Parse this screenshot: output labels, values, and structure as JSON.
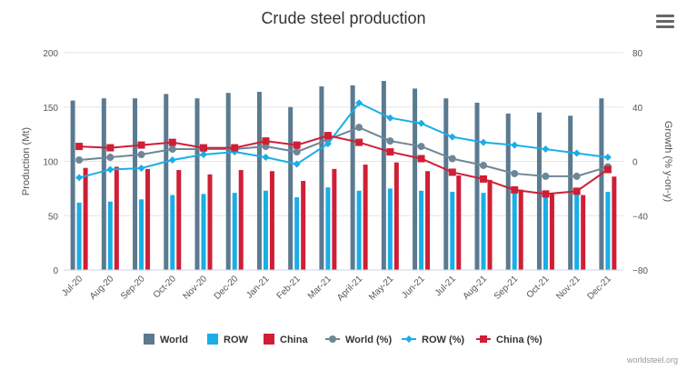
{
  "title": "Crude steel production",
  "credit": "worldsteel.org",
  "menu_icon": "hamburger-menu-icon",
  "colors": {
    "world": "#5b7a90",
    "row": "#1aaee6",
    "china": "#cf1f36",
    "world_line": "#6d8797",
    "grid": "#e6e6e6",
    "axis_text": "#555555"
  },
  "chart_data": {
    "type": "bar+line",
    "title": "Crude steel production",
    "categories": [
      "Jul-20",
      "Aug-20",
      "Sep-20",
      "Oct-20",
      "Nov-20",
      "Dec-20",
      "Jan-21",
      "Feb-21",
      "Mar-21",
      "April-21",
      "May-21",
      "Jun-21",
      "Jul-21",
      "Aug-21",
      "Sep-21",
      "Oct-21",
      "Nov-21",
      "Dec-21"
    ],
    "ylabel_left": "Production (Mt)",
    "ylabel_right": "Growth (% y-on-y)",
    "ylim_left": [
      0,
      200
    ],
    "ylim_right": [
      -80,
      80
    ],
    "yticks_left": [
      "0",
      "50",
      "100",
      "150",
      "200"
    ],
    "yticks_right": [
      "−80",
      "−40",
      "0",
      "40",
      "80"
    ],
    "grid": true,
    "legend_position": "bottom",
    "bar_series": [
      {
        "name": "World",
        "values": [
          156,
          158,
          158,
          162,
          158,
          163,
          164,
          150,
          169,
          170,
          174,
          167,
          158,
          154,
          144,
          145,
          142,
          158
        ]
      },
      {
        "name": "ROW",
        "values": [
          62,
          63,
          65,
          69,
          70,
          71,
          73,
          67,
          76,
          73,
          75,
          73,
          72,
          71,
          71,
          69,
          72,
          72
        ]
      },
      {
        "name": "China",
        "values": [
          94,
          95,
          93,
          92,
          88,
          92,
          91,
          82,
          93,
          97,
          99,
          91,
          87,
          83,
          74,
          71,
          69,
          86
        ]
      }
    ],
    "line_series": [
      {
        "name": "World (%)",
        "values": [
          1,
          3,
          5,
          9,
          9,
          9,
          11,
          7,
          16,
          25,
          15,
          11,
          2,
          -3,
          -9,
          -11,
          -11,
          -4
        ]
      },
      {
        "name": "ROW (%)",
        "values": [
          -12,
          -6,
          -5,
          1,
          5,
          7,
          3,
          -2,
          13,
          43,
          32,
          28,
          18,
          14,
          12,
          9,
          6,
          3
        ]
      },
      {
        "name": "China (%)",
        "values": [
          11,
          10,
          12,
          14,
          10,
          10,
          15,
          12,
          19,
          14,
          7,
          2,
          -8,
          -13,
          -21,
          -24,
          -22,
          -6
        ]
      }
    ]
  },
  "legend": [
    {
      "label": "World",
      "kind": "bar",
      "color": "#5b7a90"
    },
    {
      "label": "ROW",
      "kind": "bar",
      "color": "#1aaee6"
    },
    {
      "label": "China",
      "kind": "bar",
      "color": "#cf1f36"
    },
    {
      "label": "World (%)",
      "kind": "line-circle",
      "color": "#6d8797"
    },
    {
      "label": "ROW (%)",
      "kind": "line-diamond",
      "color": "#1aaee6"
    },
    {
      "label": "China (%)",
      "kind": "line-square",
      "color": "#cf1f36"
    }
  ]
}
